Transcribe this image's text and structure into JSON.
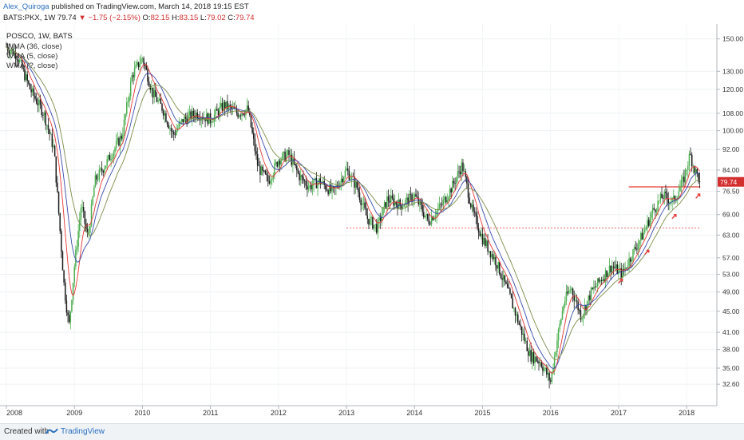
{
  "header": {
    "author": "Alex_Quiroga",
    "published": "published on TradingView.com, March 14, 2018 19:15 EST",
    "symbol": "BATS:PKX, 1W",
    "last": "79.74",
    "change": "−1.75 (−2.15%)",
    "o_label": "O:",
    "o_value": "82.15",
    "h_label": "H:",
    "h_value": "83.15",
    "l_label": "L:",
    "l_value": "79.02",
    "c_label": "C:",
    "c_value": "79.74"
  },
  "footer": {
    "created_with": "Created with",
    "brand": "TradingView"
  },
  "colors": {
    "up": "#4caf50",
    "down": "#1a1a1a",
    "ma_red": "#e53935",
    "ma_blue": "#3949ab",
    "ma_olive": "#7c8c4a",
    "level_line": "#e53935",
    "last_price_tag": "#d32f2f"
  },
  "chart_data": {
    "type": "line",
    "title": "POSCO, 1W, BATS",
    "legend": [
      "WMA (36, close)",
      "WMA (5, close)",
      "WMA (?, close)"
    ],
    "y_scale": "log",
    "ylim": [
      30.5,
      158
    ],
    "y_ticks": [
      "150.00",
      "130.00",
      "120.00",
      "108.00",
      "100.00",
      "92.00",
      "84.00",
      "76.50",
      "69.00",
      "63.00",
      "57.00",
      "53.00",
      "49.00",
      "45.00",
      "41.00",
      "38.00",
      "35.00",
      "32.60"
    ],
    "x_ticks": [
      "2008",
      "2009",
      "2010",
      "2011",
      "2012",
      "2013",
      "2014",
      "2015",
      "2016",
      "2017",
      "2018"
    ],
    "last_price": "79.74",
    "horizontal_levels": [
      {
        "value": 78.0,
        "style": "solid",
        "from": "2017.15",
        "to": "2018.2"
      },
      {
        "value": 65.0,
        "style": "dotted",
        "from": "2013.0",
        "to": "2018.2"
      }
    ],
    "price_anchors": [
      {
        "t": 2008.0,
        "p": 145
      },
      {
        "t": 2008.15,
        "p": 140
      },
      {
        "t": 2008.35,
        "p": 120
      },
      {
        "t": 2008.55,
        "p": 108
      },
      {
        "t": 2008.7,
        "p": 92
      },
      {
        "t": 2008.85,
        "p": 50
      },
      {
        "t": 2008.92,
        "p": 42
      },
      {
        "t": 2009.0,
        "p": 55
      },
      {
        "t": 2009.1,
        "p": 72
      },
      {
        "t": 2009.2,
        "p": 62
      },
      {
        "t": 2009.3,
        "p": 80
      },
      {
        "t": 2009.5,
        "p": 88
      },
      {
        "t": 2009.7,
        "p": 98
      },
      {
        "t": 2009.85,
        "p": 128
      },
      {
        "t": 2010.0,
        "p": 138
      },
      {
        "t": 2010.15,
        "p": 118
      },
      {
        "t": 2010.3,
        "p": 110
      },
      {
        "t": 2010.45,
        "p": 98
      },
      {
        "t": 2010.6,
        "p": 105
      },
      {
        "t": 2010.8,
        "p": 108
      },
      {
        "t": 2011.0,
        "p": 105
      },
      {
        "t": 2011.2,
        "p": 112
      },
      {
        "t": 2011.4,
        "p": 108
      },
      {
        "t": 2011.55,
        "p": 110
      },
      {
        "t": 2011.7,
        "p": 85
      },
      {
        "t": 2011.85,
        "p": 80
      },
      {
        "t": 2012.0,
        "p": 88
      },
      {
        "t": 2012.15,
        "p": 90
      },
      {
        "t": 2012.3,
        "p": 82
      },
      {
        "t": 2012.45,
        "p": 78
      },
      {
        "t": 2012.6,
        "p": 80
      },
      {
        "t": 2012.8,
        "p": 76
      },
      {
        "t": 2013.0,
        "p": 84
      },
      {
        "t": 2013.15,
        "p": 78
      },
      {
        "t": 2013.3,
        "p": 68
      },
      {
        "t": 2013.45,
        "p": 65
      },
      {
        "t": 2013.6,
        "p": 74
      },
      {
        "t": 2013.8,
        "p": 72
      },
      {
        "t": 2014.0,
        "p": 75
      },
      {
        "t": 2014.2,
        "p": 67
      },
      {
        "t": 2014.4,
        "p": 72
      },
      {
        "t": 2014.55,
        "p": 78
      },
      {
        "t": 2014.7,
        "p": 86
      },
      {
        "t": 2014.85,
        "p": 70
      },
      {
        "t": 2015.0,
        "p": 62
      },
      {
        "t": 2015.2,
        "p": 56
      },
      {
        "t": 2015.4,
        "p": 48
      },
      {
        "t": 2015.55,
        "p": 42
      },
      {
        "t": 2015.7,
        "p": 37
      },
      {
        "t": 2015.85,
        "p": 36
      },
      {
        "t": 2016.0,
        "p": 33
      },
      {
        "t": 2016.1,
        "p": 40
      },
      {
        "t": 2016.2,
        "p": 47
      },
      {
        "t": 2016.3,
        "p": 50
      },
      {
        "t": 2016.45,
        "p": 44
      },
      {
        "t": 2016.6,
        "p": 49
      },
      {
        "t": 2016.75,
        "p": 52
      },
      {
        "t": 2016.9,
        "p": 55
      },
      {
        "t": 2017.05,
        "p": 53
      },
      {
        "t": 2017.2,
        "p": 58
      },
      {
        "t": 2017.35,
        "p": 63
      },
      {
        "t": 2017.5,
        "p": 70
      },
      {
        "t": 2017.65,
        "p": 75
      },
      {
        "t": 2017.8,
        "p": 73
      },
      {
        "t": 2017.95,
        "p": 80
      },
      {
        "t": 2018.05,
        "p": 90
      },
      {
        "t": 2018.12,
        "p": 84
      },
      {
        "t": 2018.2,
        "p": 79.74
      }
    ]
  }
}
